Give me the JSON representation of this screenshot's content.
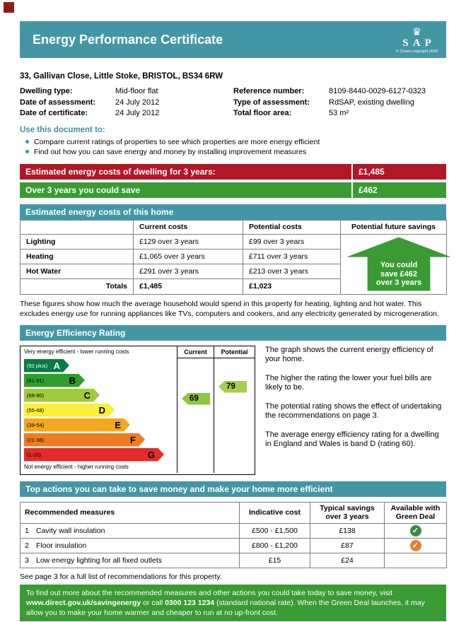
{
  "colors": {
    "teal": "#4397a5",
    "red": "#b01826",
    "green": "#3a9b35",
    "print_mark": "#8f1d14"
  },
  "header": {
    "title": "Energy Performance Certificate",
    "logo": {
      "crown_icon": "♛",
      "text": "SAP",
      "copyright": "© Crown copyright 2009"
    }
  },
  "address": "33, Gallivan Close, Little Stoke, BRISTOL, BS34 6RW",
  "details": {
    "left": [
      {
        "label": "Dwelling type:",
        "value": "Mid-floor flat"
      },
      {
        "label": "Date of assessment:",
        "value": "24 July 2012"
      },
      {
        "label": "Date of certificate:",
        "value": "24 July 2012"
      }
    ],
    "right": [
      {
        "label": "Reference number:",
        "value": "8109-8440-0029-6127-0323"
      },
      {
        "label": "Type of assessment:",
        "value": "RdSAP, existing dwelling"
      },
      {
        "label": "Total floor area:",
        "value": "53 m²"
      }
    ]
  },
  "use_document": {
    "heading": "Use this document to:",
    "bullets": [
      "Compare current ratings of properties to see which properties are more energy efficient",
      "Find out how you can save energy and money by installing improvement measures"
    ]
  },
  "cost_banners": {
    "estimated": {
      "label": "Estimated energy costs of dwelling for 3 years:",
      "value": "£1,485"
    },
    "savings": {
      "label": "Over 3 years you could save",
      "value": "£462"
    }
  },
  "costs_section": {
    "banner": "Estimated energy costs of this home",
    "headers": {
      "current": "Current costs",
      "potential": "Potential costs",
      "future": "Potential future savings"
    },
    "rows": [
      {
        "label": "Lighting",
        "current": "£129 over 3 years",
        "potential": "£99 over 3 years"
      },
      {
        "label": "Heating",
        "current": "£1,065 over 3 years",
        "potential": "£711 over 3 years"
      },
      {
        "label": "Hot Water",
        "current": "£291 over 3 years",
        "potential": "£213 over 3 years"
      }
    ],
    "totals": {
      "label": "Totals",
      "current": "£1,485",
      "potential": "£1,023"
    },
    "arrow": {
      "line1": "You could",
      "line2": "save £462",
      "line3": "over 3 years"
    },
    "disclaimer": "These figures show how much the average household would spend in this property for heating, lighting and hot water. This excludes energy use for running appliances like TVs, computers and cookers, and any electricity generated by microgeneration."
  },
  "rating_section": {
    "banner": "Energy Efficiency Rating",
    "top_label": "Very energy efficient - lower running costs",
    "bottom_label": "Not energy efficient - higher running costs",
    "col_current": "Current",
    "col_potential": "Potential",
    "bands": [
      {
        "letter": "A",
        "range": "(92 plus)",
        "color": "#077c44"
      },
      {
        "letter": "B",
        "range": "(81-91)",
        "color": "#2f9e2a"
      },
      {
        "letter": "C",
        "range": "(69-80)",
        "color": "#9fcb3b"
      },
      {
        "letter": "D",
        "range": "(55-68)",
        "color": "#f9ee39"
      },
      {
        "letter": "E",
        "range": "(39-54)",
        "color": "#f3a81f"
      },
      {
        "letter": "F",
        "range": "(21-38)",
        "color": "#ee7c23"
      },
      {
        "letter": "G",
        "range": "(1-20)",
        "color": "#e32b29"
      }
    ],
    "current_value": "69",
    "current_color": "#8ec63f",
    "potential_value": "79",
    "potential_color": "#a6ce53",
    "paragraphs": [
      "The graph shows the current energy efficiency of your home.",
      "The higher the rating the lower your fuel bills are likely to be.",
      "The potential rating shows the effect of undertaking the recommendations on page 3.",
      "The average energy efficiency rating for a dwelling in England and Wales is band D (rating 60)."
    ]
  },
  "actions_section": {
    "banner": "Top actions you can take to save money and make your home more efficient",
    "headers": {
      "measures": "Recommended measures",
      "cost": "Indicative cost",
      "savings": "Typical savings over 3 years",
      "deal": "Available with Green Deal"
    },
    "rows": [
      {
        "num": "1",
        "measure": "Cavity wall insulation",
        "cost": "£500 - £1,500",
        "savings": "£138",
        "check": "✓",
        "check_color": "#3c8a44"
      },
      {
        "num": "2",
        "measure": "Floor insulation",
        "cost": "£800 - £1,200",
        "savings": "£87",
        "check": "✓",
        "check_color": "#e0832f"
      },
      {
        "num": "3",
        "measure": "Low energy lighting for all fixed outlets",
        "cost": "£15",
        "savings": "£24",
        "check": "",
        "check_color": ""
      }
    ],
    "see_page": "See page 3 for a full list of recommendations for this property."
  },
  "footer": {
    "text_before": "To find out more about the recommended measures and other actions you could take today to save money, visit",
    "link": "www.direct.gov.uk/savingenergy",
    "text_mid": "or call",
    "phone": "0300 123 1234",
    "text_after": "(standard national rate). When the Green Deal launches, it may allow you to make your home warmer and cheaper to run at no up-front cost."
  }
}
